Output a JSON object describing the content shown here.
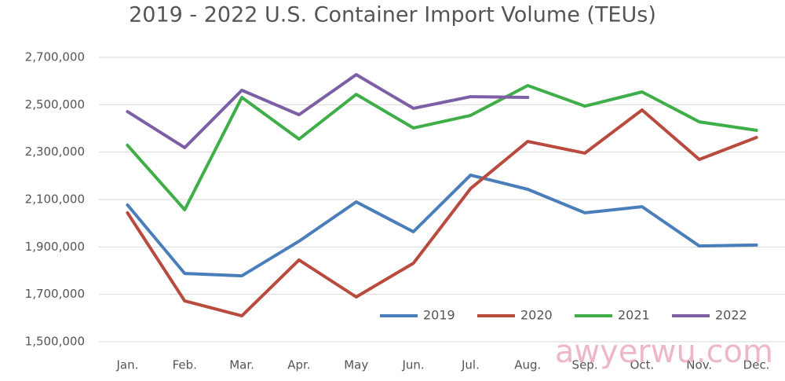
{
  "chart_data": {
    "type": "line",
    "title": "2019 - 2022 U.S. Container Import Volume (TEUs)",
    "categories": [
      "Jan.",
      "Feb.",
      "Mar.",
      "Apr.",
      "May",
      "Jun.",
      "Jul.",
      "Aug.",
      "Sep.",
      "Oct.",
      "Nov.",
      "Dec."
    ],
    "series": [
      {
        "name": "2019",
        "color": "#4a7ebb",
        "values": [
          2077000,
          1788000,
          1778000,
          1924000,
          2090000,
          1964000,
          2203000,
          2143000,
          2044000,
          2070000,
          1904000,
          1908000
        ]
      },
      {
        "name": "2020",
        "color": "#b84a3e",
        "values": [
          2044000,
          1672000,
          1609000,
          1845000,
          1689000,
          1831000,
          2146000,
          2345000,
          2296000,
          2478000,
          2269000,
          2362000
        ]
      },
      {
        "name": "2021",
        "color": "#3fae49",
        "values": [
          2329000,
          2057000,
          2531000,
          2355000,
          2544000,
          2402000,
          2455000,
          2581000,
          2494000,
          2554000,
          2428000,
          2392000
        ]
      },
      {
        "name": "2022",
        "color": "#7d5fa6",
        "values": [
          2471000,
          2319000,
          2561000,
          2458000,
          2627000,
          2485000,
          2534000,
          2531000,
          null,
          null,
          null,
          null
        ]
      }
    ],
    "ylim": [
      1500000,
      2700000
    ],
    "yticks": [
      {
        "value": 1500000,
        "label": "1,500,000"
      },
      {
        "value": 1700000,
        "label": "1,700,000"
      },
      {
        "value": 1900000,
        "label": "1,900,000"
      },
      {
        "value": 2100000,
        "label": "2,100,000"
      },
      {
        "value": 2300000,
        "label": "2,300,000"
      },
      {
        "value": 2500000,
        "label": "2,500,000"
      },
      {
        "value": 2700000,
        "label": "2,700,000"
      }
    ],
    "grid": true,
    "legend": "lower right",
    "watermark": "awyerwu.com"
  }
}
